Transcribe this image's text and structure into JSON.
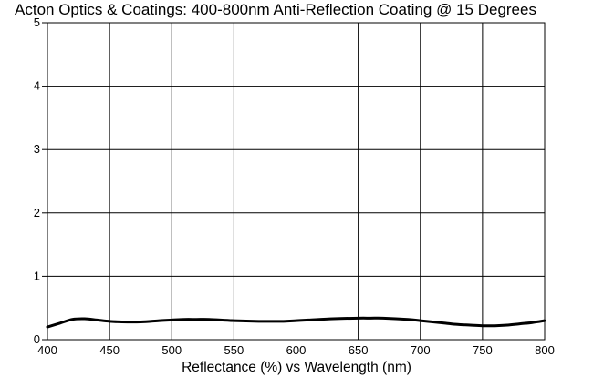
{
  "chart_data": {
    "type": "line",
    "title": "Acton Optics & Coatings: 400-800nm Anti-Reflection Coating @ 15 Degrees",
    "xlabel": "Reflectance (%)  vs  Wavelength (nm)",
    "ylabel": "",
    "xlim": [
      400,
      800
    ],
    "ylim": [
      0,
      5
    ],
    "x_ticks": [
      "400",
      "450",
      "500",
      "550",
      "600",
      "650",
      "700",
      "750",
      "800"
    ],
    "y_ticks": [
      "0",
      "1",
      "2",
      "3",
      "4",
      "5"
    ],
    "grid": true,
    "series": [
      {
        "x": [
          400,
          410,
          420,
          430,
          440,
          450,
          460,
          475,
          490,
          500,
          510,
          520,
          530,
          550,
          570,
          590,
          600,
          610,
          630,
          650,
          660,
          670,
          690,
          700,
          710,
          720,
          730,
          740,
          750,
          760,
          770,
          780,
          790,
          800
        ],
        "values": [
          0.2,
          0.26,
          0.32,
          0.33,
          0.31,
          0.29,
          0.28,
          0.28,
          0.3,
          0.31,
          0.32,
          0.32,
          0.32,
          0.3,
          0.29,
          0.29,
          0.3,
          0.31,
          0.33,
          0.34,
          0.34,
          0.34,
          0.32,
          0.3,
          0.28,
          0.26,
          0.24,
          0.23,
          0.22,
          0.22,
          0.23,
          0.25,
          0.27,
          0.3
        ]
      }
    ]
  }
}
